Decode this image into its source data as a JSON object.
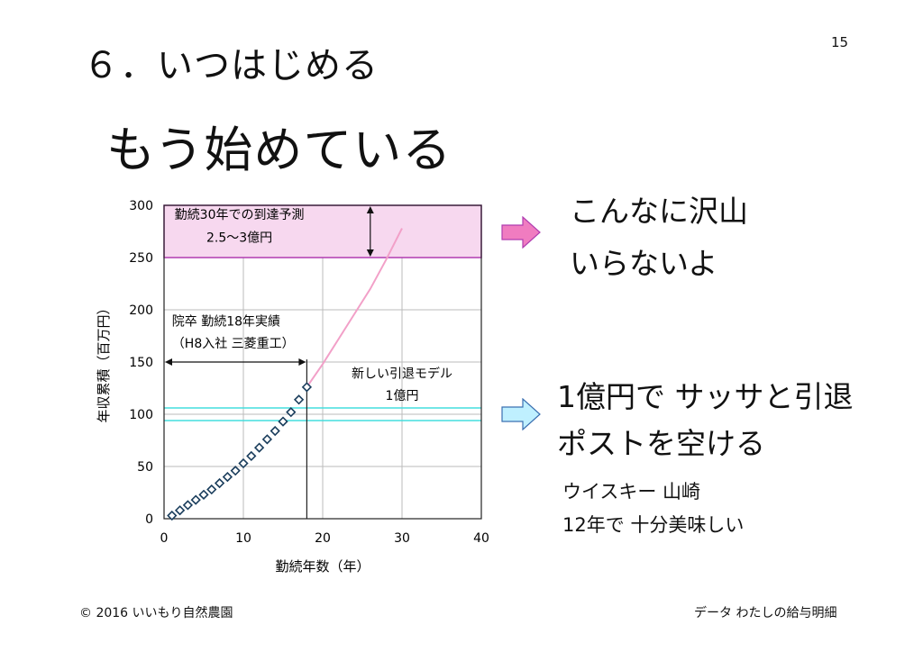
{
  "page_number": "15",
  "heading": "６．いつはじめる",
  "main_title": "もう始めている",
  "right_text": {
    "line1": "こんなに沢山",
    "line2": "いらないよ",
    "line3": "1億円で サッサと引退",
    "line4": "ポストを空ける",
    "sub1": "ウイスキー 山崎",
    "sub2": "12年で 十分美味しい"
  },
  "footer": {
    "left": "© 2016 いいもり自然農園",
    "right": "データ わたしの給与明細"
  },
  "colors": {
    "upper_band": "#f7d8ef",
    "upper_band_border": "#b03cb0",
    "lower_band_border": "#44dddd",
    "projection_line": "#f2a0c8",
    "pink_arrow": "#f07cc0",
    "blue_arrow": "#bff0ff"
  },
  "chart_data": {
    "type": "scatter",
    "xlabel": "勤続年数（年）",
    "ylabel": "年収累積（百万円）",
    "xlim": [
      0,
      40
    ],
    "ylim": [
      0,
      300
    ],
    "x_ticks": [
      "0",
      "10",
      "20",
      "30",
      "40"
    ],
    "y_ticks": [
      "0",
      "50",
      "100",
      "150",
      "200",
      "250",
      "300"
    ],
    "grid": true,
    "points": [
      {
        "x": 1,
        "y": 3
      },
      {
        "x": 2,
        "y": 8
      },
      {
        "x": 3,
        "y": 13
      },
      {
        "x": 4,
        "y": 18
      },
      {
        "x": 5,
        "y": 23
      },
      {
        "x": 6,
        "y": 28
      },
      {
        "x": 7,
        "y": 34
      },
      {
        "x": 8,
        "y": 40
      },
      {
        "x": 9,
        "y": 46
      },
      {
        "x": 10,
        "y": 53
      },
      {
        "x": 11,
        "y": 60
      },
      {
        "x": 12,
        "y": 68
      },
      {
        "x": 13,
        "y": 76
      },
      {
        "x": 14,
        "y": 84
      },
      {
        "x": 15,
        "y": 93
      },
      {
        "x": 16,
        "y": 102
      },
      {
        "x": 17,
        "y": 114
      },
      {
        "x": 18,
        "y": 126
      }
    ],
    "projection": [
      {
        "x": 18,
        "y": 126
      },
      {
        "x": 20,
        "y": 148
      },
      {
        "x": 22,
        "y": 172
      },
      {
        "x": 24,
        "y": 196
      },
      {
        "x": 26,
        "y": 220
      },
      {
        "x": 28,
        "y": 248
      },
      {
        "x": 30,
        "y": 278
      }
    ],
    "upper_band": [
      250,
      300
    ],
    "lower_band": [
      94,
      106
    ],
    "vertical_marker_x": 18,
    "annotations": {
      "upper_label_1": "勤続30年での到達予測",
      "upper_label_2": "2.5～3億円",
      "middle_label_1": "院卒 勤続18年実績",
      "middle_label_2": "（H8入社 三菱重工）",
      "lower_label_1": "新しい引退モデル",
      "lower_label_2": "1億円"
    }
  }
}
